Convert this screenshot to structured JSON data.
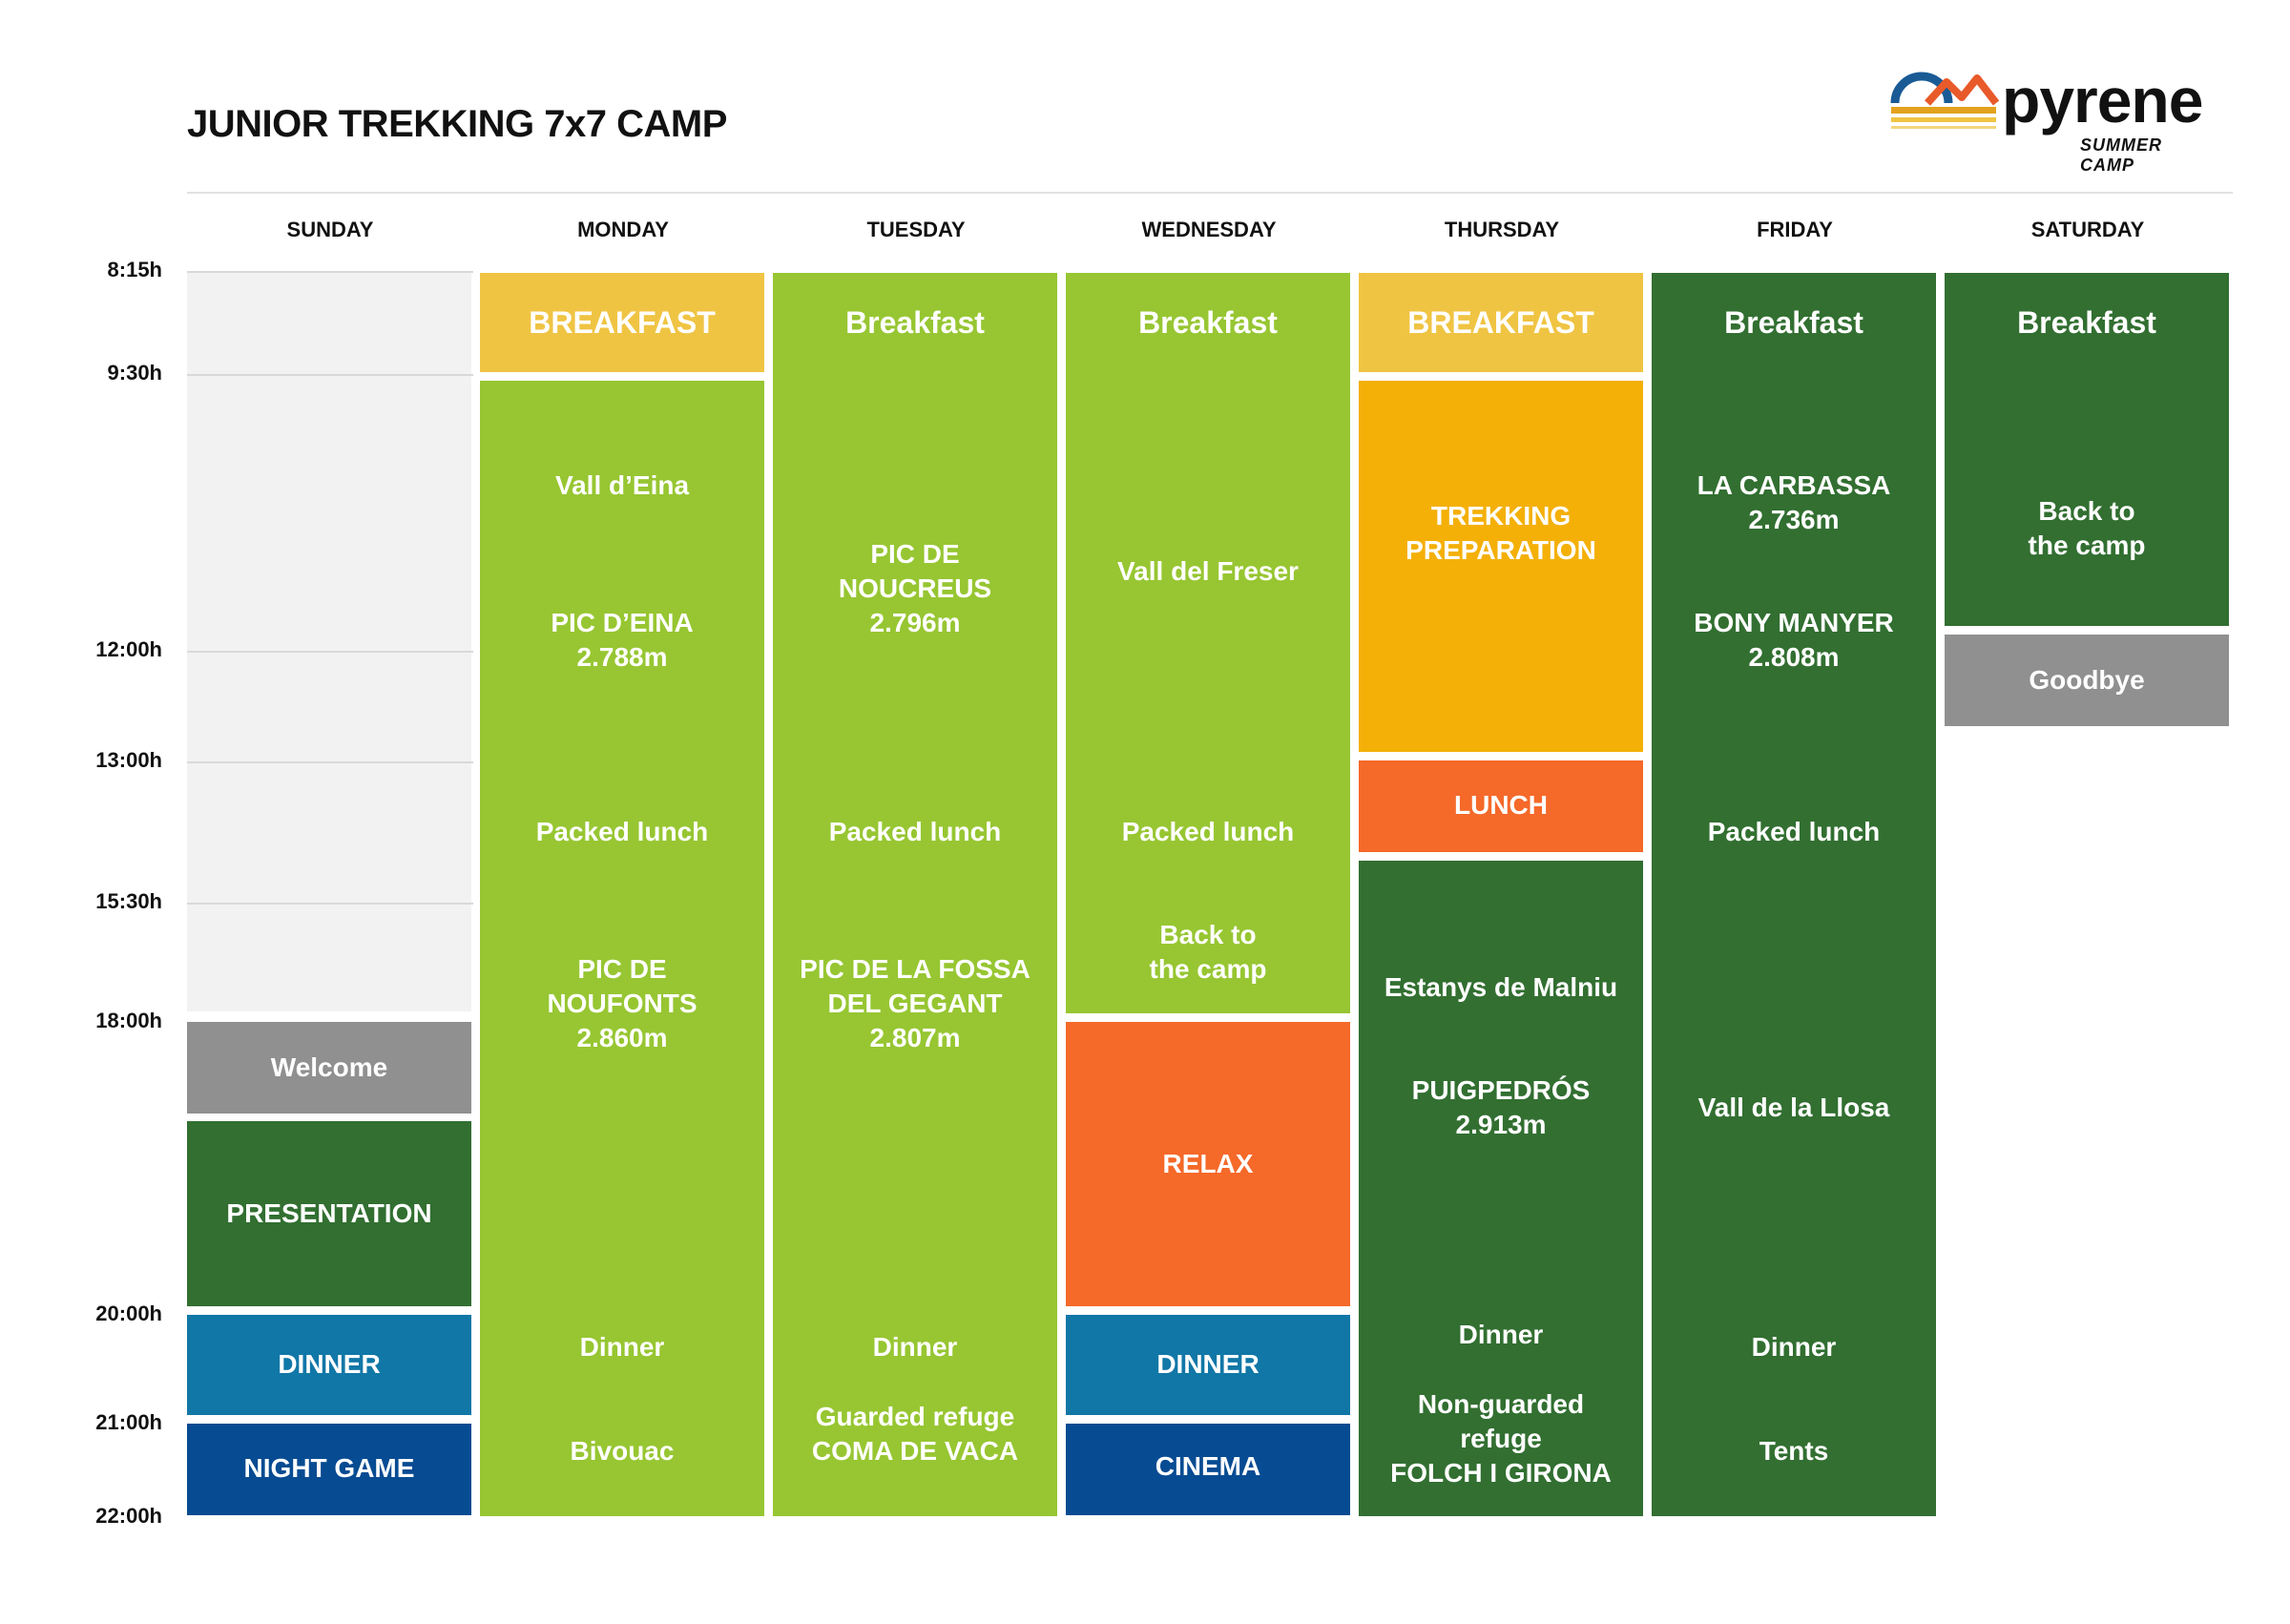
{
  "title": "JUNIOR TREKKING 7x7 CAMP",
  "logo": {
    "word": "pyrene",
    "sub": "SUMMER CAMP"
  },
  "colors": {
    "light_green": "#97c632",
    "dark_green": "#326f31",
    "yellow": "#f0c443",
    "amber": "#f4b007",
    "orange": "#f56929",
    "grey": "#8f908f",
    "teal_blue": "#1177a7",
    "navy": "#074b92",
    "empty": "#f2f2f2"
  },
  "days": [
    "SUNDAY",
    "MONDAY",
    "TUESDAY",
    "WEDNESDAY",
    "THURSDAY",
    "FRIDAY",
    "SATURDAY"
  ],
  "times": [
    "8:15h",
    "9:30h",
    "12:00h",
    "13:00h",
    "15:30h",
    "18:00h",
    "20:00h",
    "21:00h",
    "22:00h"
  ],
  "sunday": {
    "welcome": "Welcome",
    "presentation": "PRESENTATION",
    "dinner": "DINNER",
    "night_game": "NIGHT GAME"
  },
  "monday": {
    "breakfast": "BREAKFAST",
    "items": [
      "Vall d’Eina",
      "PIC D’EINA\n2.788m",
      "Packed lunch",
      "PIC DE\nNOUFONTS\n2.860m",
      "Dinner",
      "Bivouac"
    ]
  },
  "tuesday": {
    "breakfast": "Breakfast",
    "items": [
      "PIC DE\nNOUCREUS\n2.796m",
      "Packed lunch",
      "PIC DE LA FOSSA\nDEL GEGANT\n2.807m",
      "Dinner",
      "Guarded refuge\nCOMA DE VACA"
    ]
  },
  "wednesday": {
    "breakfast": "Breakfast",
    "items": [
      "Vall del Freser",
      "Packed lunch",
      "Back to\nthe camp"
    ],
    "relax": "RELAX",
    "dinner": "DINNER",
    "cinema": "CINEMA"
  },
  "thursday": {
    "breakfast": "BREAKFAST",
    "trekking": "TREKKING\nPREPARATION",
    "lunch": "LUNCH",
    "items": [
      "Estanys de Malniu",
      "PUIGPEDRÓS\n2.913m",
      "Dinner",
      "Non-guarded\nrefuge\nFOLCH I GIRONA"
    ]
  },
  "friday": {
    "breakfast": "Breakfast",
    "items": [
      "LA CARBASSA\n2.736m",
      "BONY MANYER\n2.808m",
      "Packed lunch",
      "Vall de la Llosa",
      "Dinner",
      "Tents"
    ]
  },
  "saturday": {
    "breakfast": "Breakfast",
    "back": "Back to\nthe camp",
    "goodbye": "Goodbye"
  }
}
